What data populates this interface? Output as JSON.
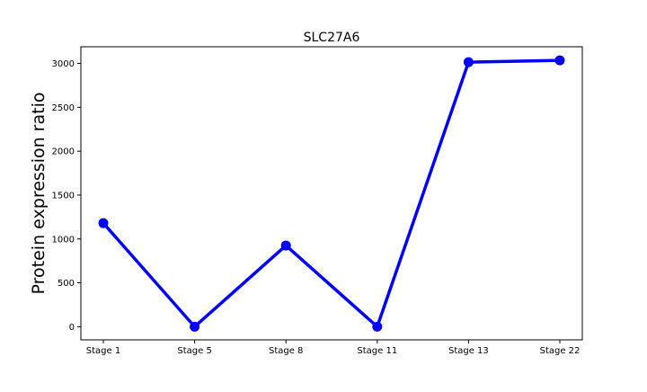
{
  "chart_data": {
    "type": "line",
    "title": "SLC27A6",
    "xlabel": "",
    "ylabel": "Protein expression ratio",
    "categories": [
      "Stage 1",
      "Stage 5",
      "Stage 8",
      "Stage 11",
      "Stage 13",
      "Stage 22"
    ],
    "series": [
      {
        "values": [
          1180,
          0,
          925,
          0,
          3015,
          3035
        ],
        "color": "#0000ff"
      }
    ],
    "ylim": [
      -150,
      3190
    ],
    "yticks": [
      0,
      500,
      1000,
      1500,
      2000,
      2500,
      3000
    ],
    "grid": false,
    "legend": "none"
  }
}
